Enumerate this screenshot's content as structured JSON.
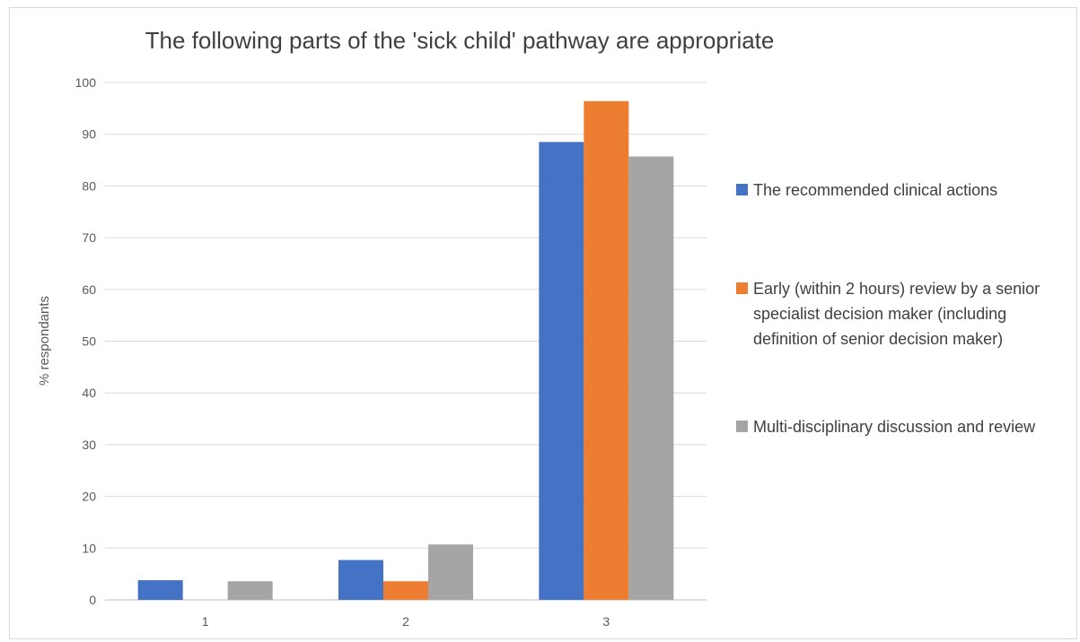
{
  "chart_data": {
    "type": "bar",
    "title": "The following parts of the 'sick child' pathway are appropriate",
    "xlabel": "",
    "ylabel": "% respondants",
    "categories": [
      "1",
      "2",
      "3"
    ],
    "ylim": [
      0,
      100
    ],
    "yticks": [
      0,
      10,
      20,
      30,
      40,
      50,
      60,
      70,
      80,
      90,
      100
    ],
    "grid": true,
    "legend_position": "right",
    "series": [
      {
        "name": "The recommended clinical actions",
        "color": "#4472C4",
        "values": [
          3.8,
          7.7,
          88.5
        ]
      },
      {
        "name": "Early (within 2 hours) review by a senior specialist decision maker (including definition of senior decision maker)",
        "color": "#ED7D31",
        "values": [
          0,
          3.6,
          96.4
        ]
      },
      {
        "name": "Multi-disciplinary discussion and review",
        "color": "#A5A5A5",
        "values": [
          3.6,
          10.7,
          85.7
        ]
      }
    ]
  }
}
